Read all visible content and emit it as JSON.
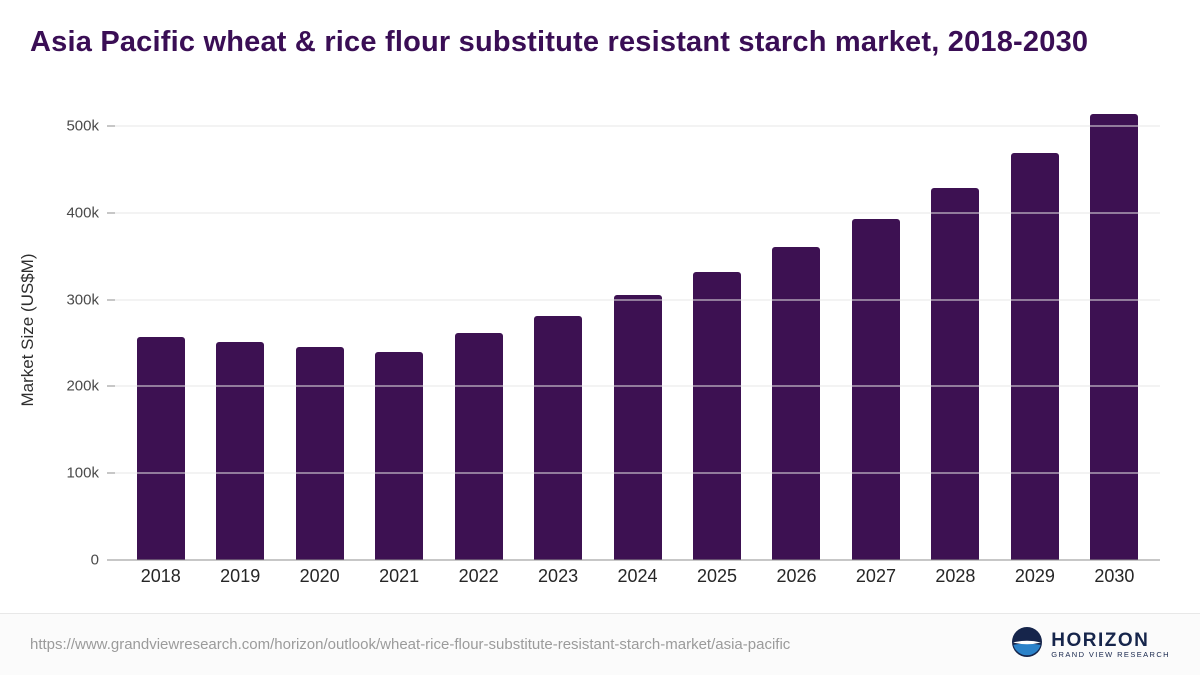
{
  "page": {
    "title": "Asia Pacific wheat & rice flour substitute resistant starch market, 2018-2030"
  },
  "colors": {
    "bar": "#3d1152",
    "title": "#3a0e55",
    "grid": "#e7e7e7",
    "axis": "#8f8f8f",
    "logo_navy": "#16254b"
  },
  "chart_data": {
    "type": "bar",
    "title": "Asia Pacific wheat & rice flour substitute resistant starch market, 2018-2030",
    "categories": [
      "2018",
      "2019",
      "2020",
      "2021",
      "2022",
      "2023",
      "2024",
      "2025",
      "2026",
      "2027",
      "2028",
      "2029",
      "2030"
    ],
    "values": [
      257000,
      251000,
      246000,
      240000,
      261000,
      281000,
      305000,
      332000,
      361000,
      393000,
      429000,
      469000,
      514000
    ],
    "xlabel": "",
    "ylabel": "Market Size (US$M)",
    "ylim": [
      0,
      530000
    ],
    "yticks": [
      0,
      100000,
      200000,
      300000,
      400000,
      500000
    ],
    "ytick_labels": [
      "0",
      "100k",
      "200k",
      "300k",
      "400k",
      "500k"
    ],
    "grid": true,
    "legend": false
  },
  "footer": {
    "source_url": "https://www.grandviewresearch.com/horizon/outlook/wheat-rice-flour-substitute-resistant-starch-market/asia-pacific",
    "logo_name": "HORIZON",
    "logo_subtitle": "GRAND VIEW RESEARCH"
  }
}
